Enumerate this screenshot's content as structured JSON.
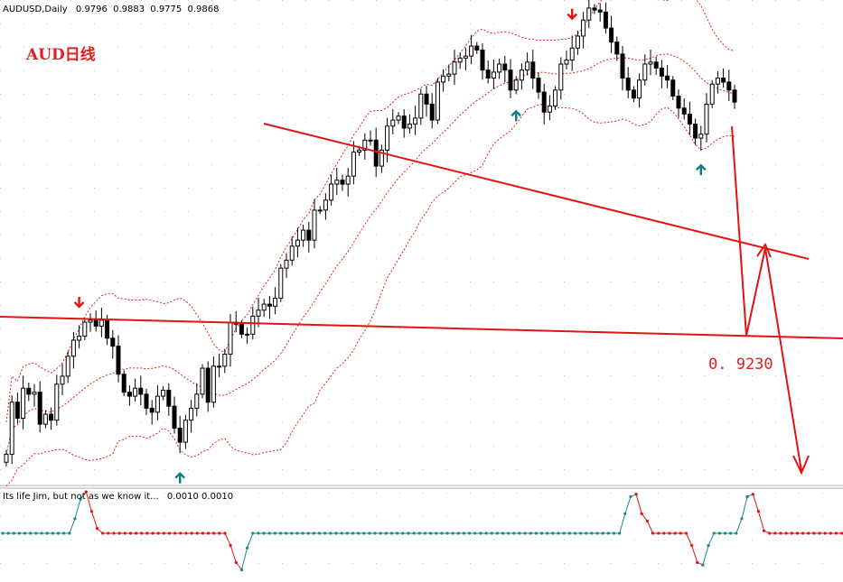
{
  "chart_data": [
    {
      "type": "candlestick",
      "header": {
        "symbol_timeframe": "AUDUSD,Daily",
        "ohlc": [
          "0.9796",
          "0.9883",
          "0.9775",
          "0.9868"
        ]
      },
      "annotation": "AUD日线",
      "level_label": "0. 9230",
      "grid": true,
      "overlays": [
        "bollinger bands (dotted red)",
        "trendlines (red)",
        "forecast arrows (red)"
      ],
      "colors": {
        "bull_body": "#ffffff",
        "bear_body": "#000000",
        "band": "#e02020",
        "trendline": "#e41313",
        "up_arrow": "#0f7f7f",
        "down_arrow": "#e41313",
        "label": "#e02020"
      },
      "prices": [
        0.887,
        0.913,
        0.905,
        0.92,
        0.917,
        0.918,
        0.902,
        0.907,
        0.904,
        0.922,
        0.926,
        0.936,
        0.944,
        0.946,
        0.953,
        0.954,
        0.951,
        0.954,
        0.945,
        0.941,
        0.927,
        0.918,
        0.916,
        0.92,
        0.917,
        0.91,
        0.908,
        0.916,
        0.919,
        0.911,
        0.9,
        0.893,
        0.904,
        0.91,
        0.917,
        0.93,
        0.913,
        0.931,
        0.931,
        0.937,
        0.953,
        0.952,
        0.947,
        0.947,
        0.956,
        0.959,
        0.962,
        0.961,
        0.965,
        0.98,
        0.984,
        0.991,
        0.994,
        0.999,
        0.994,
        1.009,
        1.009,
        1.014,
        1.022,
        1.024,
        1.022,
        1.026,
        1.038,
        1.039,
        1.044,
        1.044,
        1.031,
        1.039,
        1.051,
        1.054,
        1.056,
        1.05,
        1.052,
        1.055,
        1.067,
        1.062,
        1.054,
        1.073,
        1.076,
        1.077,
        1.083,
        1.085,
        1.086,
        1.091,
        1.089,
        1.079,
        1.075,
        1.078,
        1.082,
        1.079,
        1.069,
        1.074,
        1.079,
        1.083,
        1.075,
        1.068,
        1.058,
        1.061,
        1.069,
        1.082,
        1.084,
        1.09,
        1.096,
        1.104,
        1.11,
        1.109,
        1.108,
        1.1,
        1.093,
        1.087,
        1.075,
        1.069,
        1.065,
        1.074,
        1.082,
        1.083,
        1.08,
        1.076,
        1.074,
        1.066,
        1.06,
        1.057,
        1.052,
        1.045,
        1.047,
        1.062,
        1.072,
        1.075,
        1.073,
        1.069,
        1.063
      ],
      "arrows_up_at": [
        31,
        91,
        124
      ],
      "arrows_down_at": [
        13,
        101
      ]
    },
    {
      "type": "line",
      "title": "Its life Jim, but not as we know it...",
      "values_label": "0.0010 0.0010",
      "colors": {
        "positive": "#1a8a8a",
        "negative": "#e41313"
      },
      "segments": [
        {
          "color": "teal",
          "values": [
            0,
            0,
            0,
            0,
            0,
            0,
            0,
            0,
            0,
            0,
            0,
            0,
            0,
            0.6,
            1.4,
            1.7
          ]
        },
        {
          "color": "red",
          "values": [
            1.7,
            0.9,
            0.2,
            0,
            0,
            0,
            0,
            0,
            0,
            0,
            0,
            0,
            0,
            0,
            0,
            0,
            0,
            0,
            0,
            0,
            0,
            0,
            0,
            0,
            0,
            0,
            -0.5,
            -1.2,
            -1.5
          ]
        },
        {
          "color": "teal",
          "values": [
            -1.5,
            -0.6,
            0,
            0,
            0,
            0,
            0,
            0,
            0,
            0,
            0,
            0,
            0,
            0,
            0,
            0,
            0,
            0,
            0,
            0,
            0,
            0,
            0,
            0,
            0,
            0,
            0,
            0,
            0,
            0,
            0,
            0,
            0,
            0,
            0,
            0,
            0,
            0,
            0,
            0,
            0,
            0,
            0,
            0,
            0,
            0,
            0,
            0,
            0,
            0,
            0,
            0,
            0,
            0,
            0,
            0,
            0,
            0,
            0,
            0,
            0,
            0,
            0,
            0,
            0,
            0,
            0,
            0,
            0,
            0.8,
            1.5,
            1.6
          ]
        },
        {
          "color": "red",
          "values": [
            1.6,
            0.8,
            0.5,
            0,
            0,
            0,
            0,
            0,
            0,
            0,
            -0.5,
            -1.2,
            -1.3
          ]
        },
        {
          "color": "teal",
          "values": [
            -1.3,
            -0.5,
            0,
            0,
            0,
            0,
            0,
            0.6,
            1.5,
            1.6
          ]
        },
        {
          "color": "red",
          "values": [
            1.6,
            0.9,
            0.1,
            0,
            0,
            0,
            0,
            0,
            0,
            0,
            0,
            0,
            0,
            0,
            0,
            0,
            0,
            0,
            0,
            0,
            0,
            -0.4,
            -1.2,
            -1.4
          ]
        },
        {
          "color": "teal",
          "values": [
            -1.4,
            -1.2,
            -0.5,
            0,
            0.3,
            1.1,
            1.7
          ]
        },
        {
          "color": "red",
          "values": [
            1.7,
            1.2,
            0.5,
            0.3
          ]
        }
      ]
    }
  ]
}
